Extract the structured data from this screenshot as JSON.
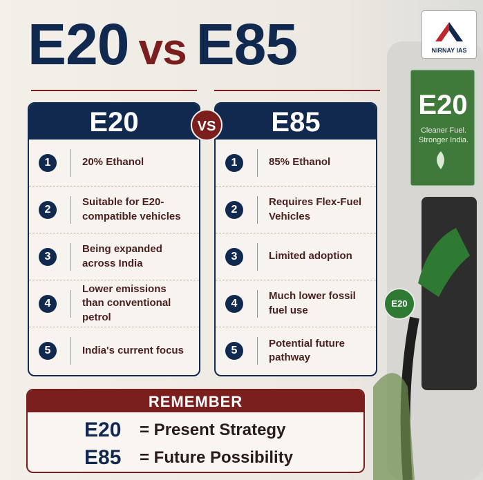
{
  "title": {
    "left": "E20",
    "middle": "vs",
    "right": "E85"
  },
  "logo": {
    "text": "NIRNAY IAS"
  },
  "comparison": {
    "vs": "VS",
    "columns": [
      {
        "heading": "E20",
        "items": [
          {
            "number": 1,
            "text": "20% Ethanol"
          },
          {
            "number": 2,
            "text": "Suitable for E20-compatible vehicles"
          },
          {
            "number": 3,
            "text": "Being expanded across India"
          },
          {
            "number": 4,
            "text": "Lower emissions than conventional petrol"
          },
          {
            "number": 5,
            "text": "India's current focus"
          }
        ]
      },
      {
        "heading": "E85",
        "items": [
          {
            "number": 1,
            "text": "85% Ethanol"
          },
          {
            "number": 2,
            "text": "Requires Flex-Fuel Vehicles"
          },
          {
            "number": 3,
            "text": "Limited adoption"
          },
          {
            "number": 4,
            "text": "Much lower fossil fuel use"
          },
          {
            "number": 5,
            "text": "Potential future pathway"
          }
        ]
      }
    ]
  },
  "pump": {
    "sign_title": "E20",
    "sign_text": "Cleaner Fuel. Stronger India.",
    "nozzle_label": "E20"
  },
  "remember": {
    "heading": "REMEMBER",
    "rows": [
      {
        "fuel": "E20",
        "meaning": "= Present Strategy"
      },
      {
        "fuel": "E85",
        "meaning": "= Future Possibility"
      }
    ]
  }
}
